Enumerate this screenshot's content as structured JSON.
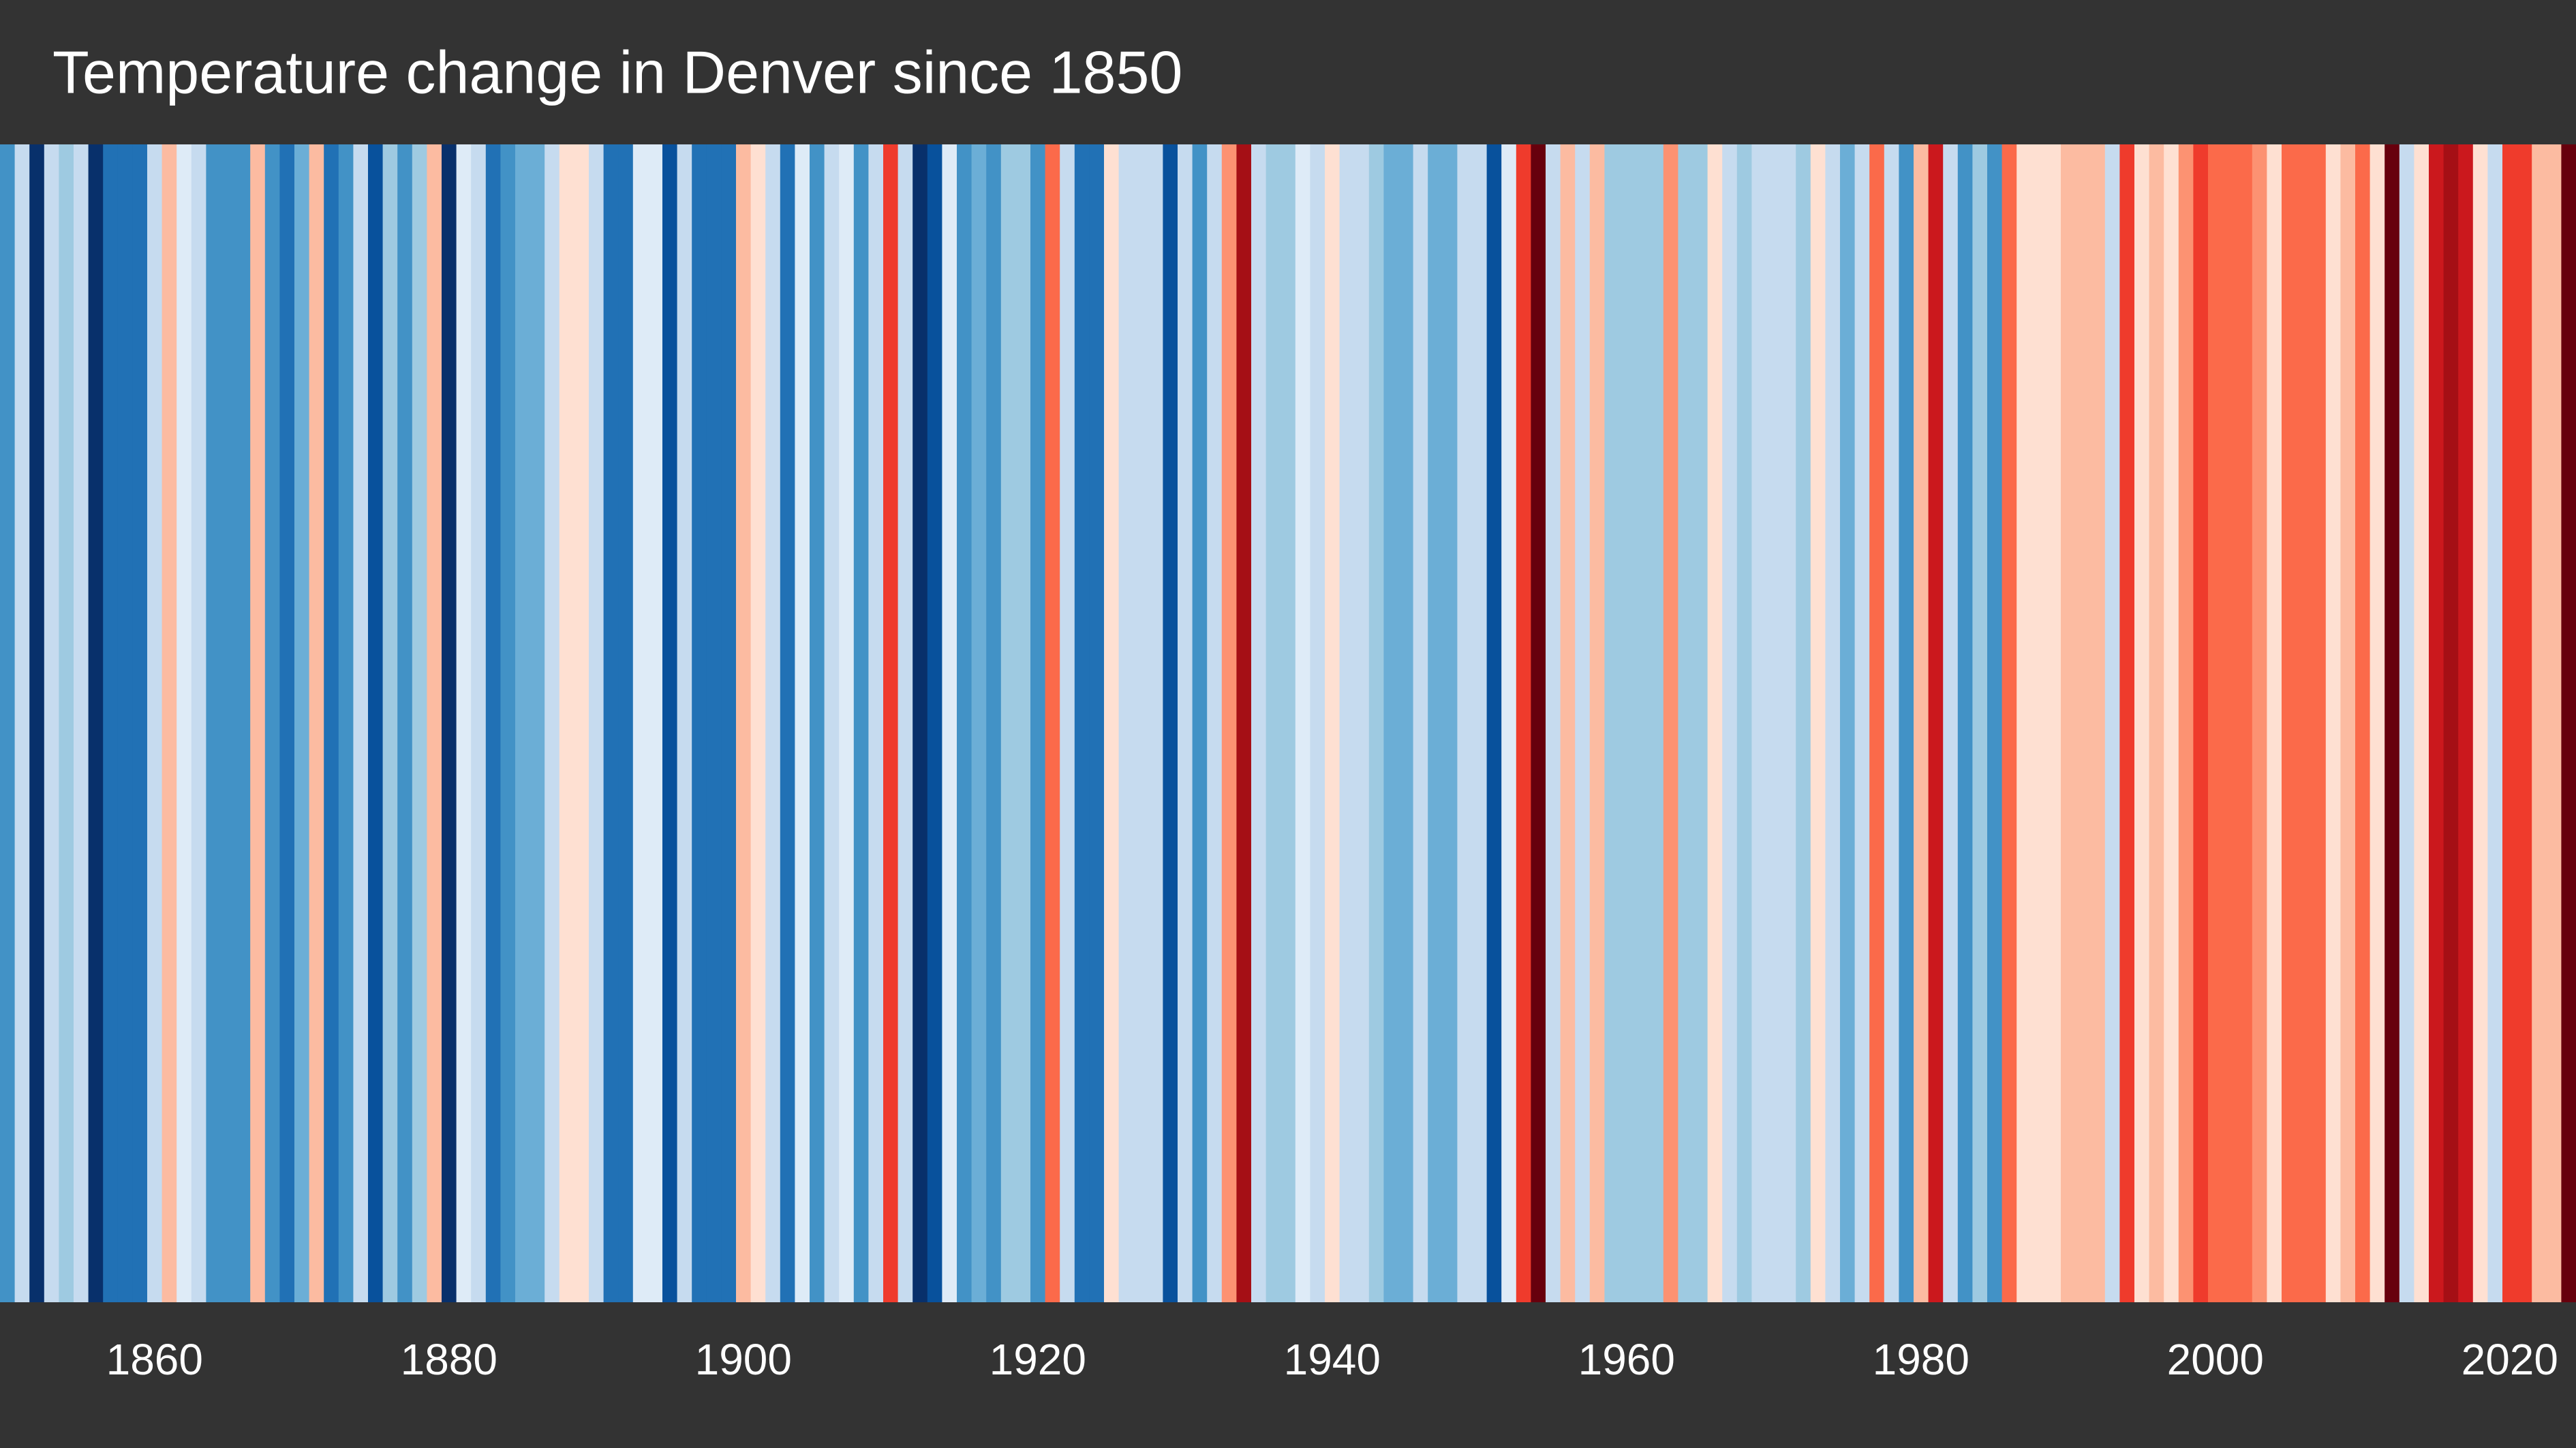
{
  "chart_data": {
    "type": "stripes",
    "title": "Temperature change in Denver since 1850",
    "x": [
      1850,
      1851,
      1852,
      1853,
      1854,
      1855,
      1856,
      1857,
      1858,
      1859,
      1860,
      1861,
      1862,
      1863,
      1864,
      1865,
      1866,
      1867,
      1868,
      1869,
      1870,
      1871,
      1872,
      1873,
      1874,
      1875,
      1876,
      1877,
      1878,
      1879,
      1880,
      1881,
      1882,
      1883,
      1884,
      1885,
      1886,
      1887,
      1888,
      1889,
      1890,
      1891,
      1892,
      1893,
      1894,
      1895,
      1896,
      1897,
      1898,
      1899,
      1900,
      1901,
      1902,
      1903,
      1904,
      1905,
      1906,
      1907,
      1908,
      1909,
      1910,
      1911,
      1912,
      1913,
      1914,
      1915,
      1916,
      1917,
      1918,
      1919,
      1920,
      1921,
      1922,
      1923,
      1924,
      1925,
      1926,
      1927,
      1928,
      1929,
      1930,
      1931,
      1932,
      1933,
      1934,
      1935,
      1936,
      1937,
      1938,
      1939,
      1940,
      1941,
      1942,
      1943,
      1944,
      1945,
      1946,
      1947,
      1948,
      1949,
      1950,
      1951,
      1952,
      1953,
      1954,
      1955,
      1956,
      1957,
      1958,
      1959,
      1960,
      1961,
      1962,
      1963,
      1964,
      1965,
      1966,
      1967,
      1968,
      1969,
      1970,
      1971,
      1972,
      1973,
      1974,
      1975,
      1976,
      1977,
      1978,
      1979,
      1980,
      1981,
      1982,
      1983,
      1984,
      1985,
      1986,
      1987,
      1988,
      1989,
      1990,
      1991,
      1992,
      1993,
      1994,
      1995,
      1996,
      1997,
      1998,
      1999,
      2000,
      2001,
      2002,
      2003,
      2004,
      2005,
      2006,
      2007,
      2008,
      2009,
      2010,
      2011,
      2012,
      2013,
      2014,
      2015,
      2016,
      2017,
      2018,
      2019,
      2020,
      2021,
      2022,
      2023,
      2024
    ],
    "values": [
      -1.35,
      -0.45,
      -2.25,
      -0.45,
      -0.75,
      -0.45,
      -2.25,
      -1.65,
      -1.65,
      -1.65,
      -0.45,
      0.45,
      -0.15,
      -0.45,
      -1.35,
      -1.35,
      -1.35,
      0.45,
      -1.35,
      -1.65,
      -1.05,
      0.45,
      -1.65,
      -1.35,
      -0.45,
      -1.95,
      -0.75,
      -1.35,
      -0.75,
      0.45,
      -2.25,
      -0.15,
      -0.45,
      -1.65,
      -1.35,
      -1.05,
      -1.05,
      -0.45,
      0.15,
      0.15,
      -0.45,
      -1.65,
      -1.65,
      -0.15,
      -0.15,
      -1.95,
      -0.45,
      -1.65,
      -1.65,
      -1.65,
      0.45,
      0.15,
      -0.45,
      -1.65,
      -0.15,
      -1.35,
      -0.45,
      -0.15,
      -1.35,
      -0.45,
      1.35,
      -0.45,
      -2.25,
      -1.95,
      -0.15,
      -1.35,
      -1.05,
      -1.35,
      -0.75,
      -0.75,
      -1.35,
      1.05,
      -0.45,
      -1.65,
      -1.65,
      0.15,
      -0.45,
      -0.45,
      -0.45,
      -1.95,
      -0.45,
      -1.35,
      -0.45,
      0.75,
      1.95,
      -0.45,
      -0.75,
      -0.75,
      -0.15,
      -0.45,
      0.15,
      -0.45,
      -0.45,
      -0.75,
      -1.05,
      -1.05,
      -0.45,
      -1.05,
      -1.05,
      -0.45,
      -0.45,
      -1.95,
      -0.15,
      1.35,
      2.25,
      -0.45,
      0.45,
      -0.45,
      0.45,
      -0.75,
      -0.75,
      -0.75,
      -0.75,
      0.75,
      -0.75,
      -0.75,
      0.15,
      -0.45,
      -0.75,
      -0.45,
      -0.45,
      -0.45,
      -0.75,
      0.15,
      -0.45,
      -1.05,
      -0.45,
      1.05,
      -0.45,
      -1.35,
      0.45,
      1.65,
      -0.45,
      -1.35,
      -0.75,
      -1.35,
      1.05,
      0.15,
      0.15,
      0.15,
      0.45,
      0.45,
      0.45,
      -0.45,
      1.35,
      0.15,
      0.45,
      0.15,
      0.75,
      1.35,
      1.05,
      1.05,
      1.05,
      0.75,
      0.15,
      1.05,
      1.05,
      1.05,
      0.15,
      0.45,
      1.05,
      0.15,
      2.25,
      -0.45,
      0.15,
      1.65,
      1.95,
      1.65,
      0.15,
      -0.45,
      1.35,
      1.35,
      0.45,
      0.45,
      2.25
    ],
    "vlim": [
      -2.4,
      2.4
    ],
    "colors": [
      "#08306b",
      "#08519c",
      "#2171b5",
      "#4292c6",
      "#6baed6",
      "#9ecae1",
      "#c6dbef",
      "#deebf7",
      "#fee0d2",
      "#fcbba1",
      "#fc9272",
      "#fb6a4a",
      "#ef3b2c",
      "#cb181d",
      "#a50f15",
      "#67000d"
    ],
    "xlim": [
      1849.5,
      2024.5
    ],
    "xticks": [
      1860,
      1880,
      1900,
      1920,
      1940,
      1960,
      1980,
      2000,
      2020
    ]
  }
}
